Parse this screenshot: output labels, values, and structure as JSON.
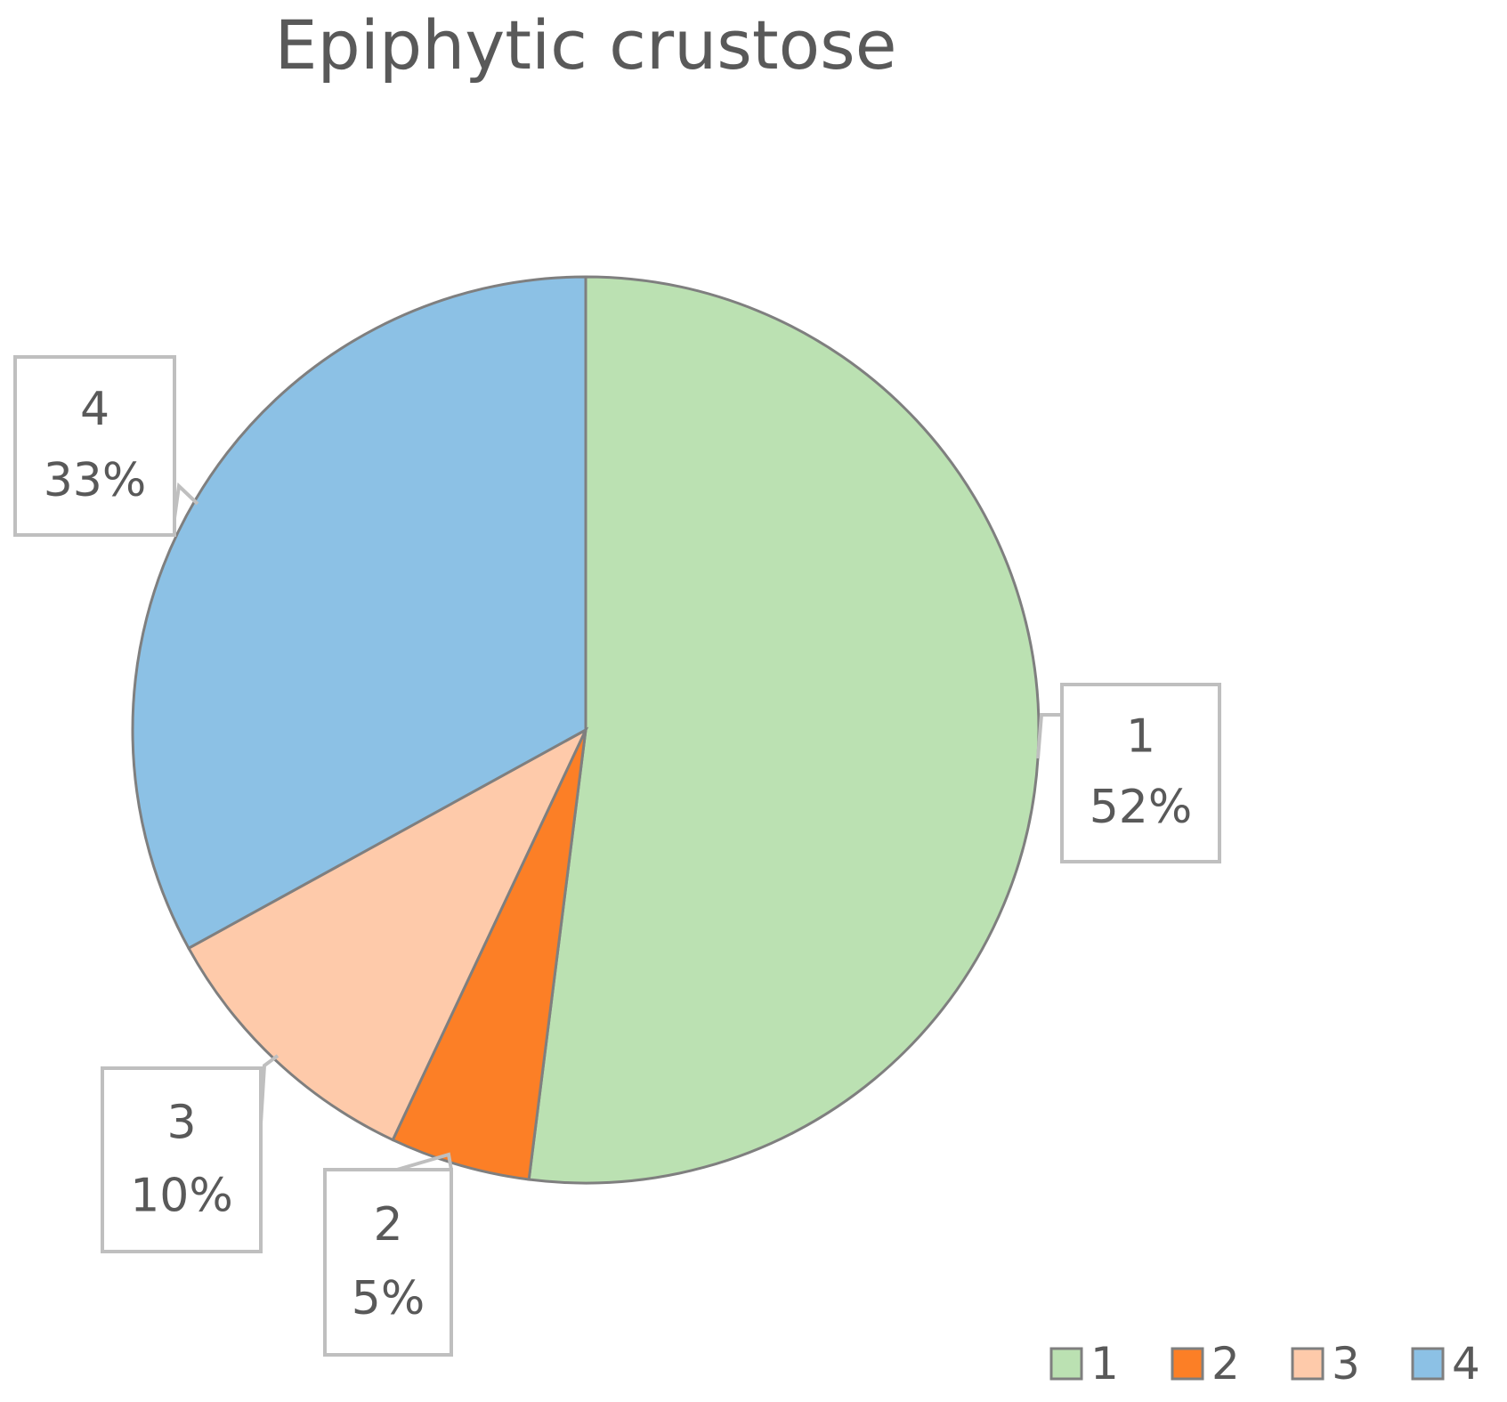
{
  "chart_data": {
    "type": "pie",
    "title": "Epiphytic crustose",
    "categories": [
      "1",
      "2",
      "3",
      "4"
    ],
    "values": [
      52,
      5,
      10,
      33
    ],
    "data_labels": [
      "52%",
      "5%",
      "10%",
      "33%"
    ],
    "colors": [
      "#BBE1B2",
      "#FC7F26",
      "#FECAAA",
      "#8CC1E5"
    ],
    "start_angle_deg": 0,
    "direction": "clockwise",
    "legend": {
      "position": "bottom-right",
      "entries": [
        "1",
        "2",
        "3",
        "4"
      ]
    }
  }
}
